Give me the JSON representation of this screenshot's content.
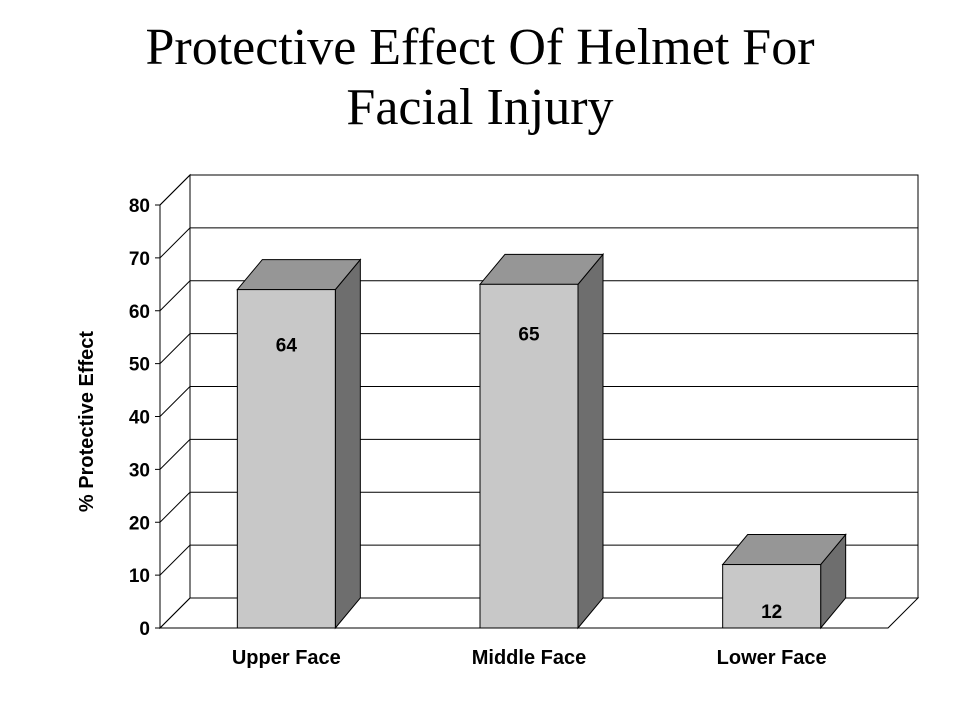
{
  "title_lines": [
    "Protective Effect Of Helmet For",
    "Facial Injury"
  ],
  "chart_data": {
    "type": "bar",
    "style": "3d-column",
    "title": "Protective Effect Of Helmet For Facial Injury",
    "xlabel": "",
    "ylabel": "% Protective Effect",
    "categories": [
      "Upper Face",
      "Middle Face",
      "Lower Face"
    ],
    "values": [
      64,
      65,
      12
    ],
    "data_labels": [
      "64",
      "65",
      "12"
    ],
    "ylim": [
      0,
      80
    ],
    "yticks": [
      0,
      10,
      20,
      30,
      40,
      50,
      60,
      70,
      80
    ],
    "grid": true,
    "legend": "none",
    "colors": {
      "bar_front": "#c8c8c8",
      "bar_top": "#969696",
      "bar_side": "#6e6e6e",
      "background": "#ffffff",
      "lines": "#000000"
    }
  }
}
